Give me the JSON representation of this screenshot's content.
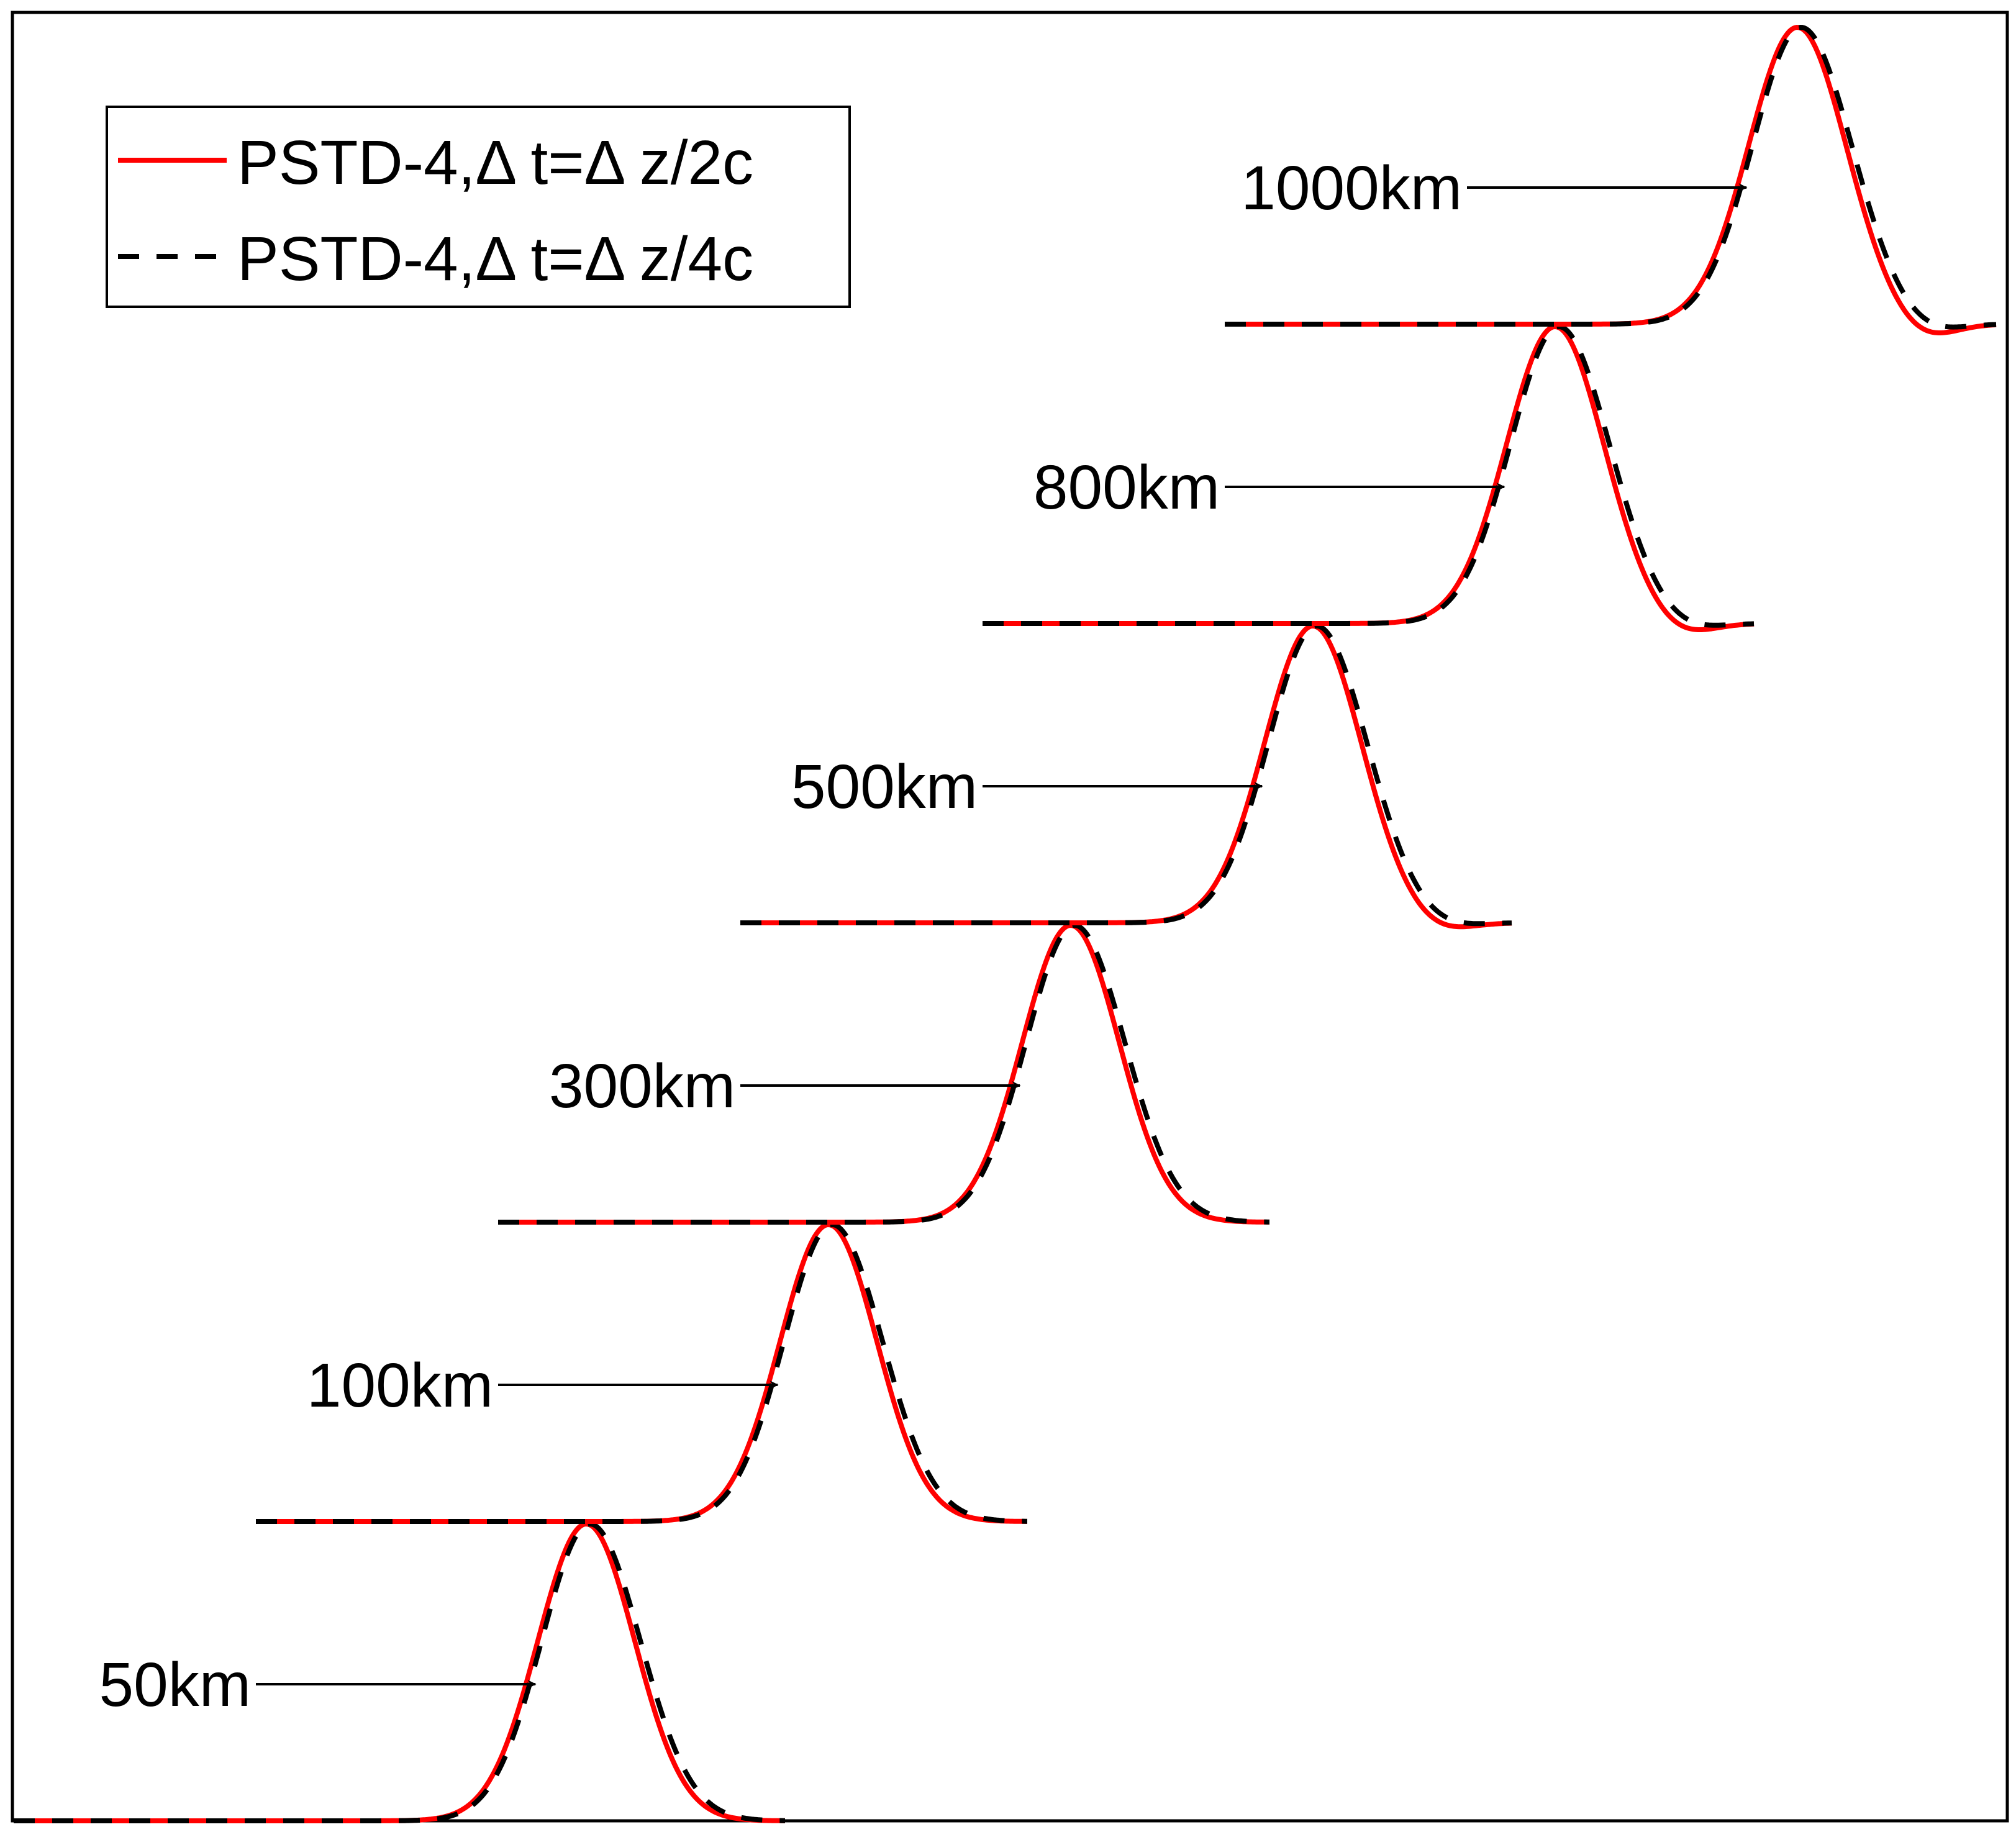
{
  "chart_data": {
    "type": "line",
    "title": "",
    "xlabel": "",
    "ylabel": "",
    "grid": false,
    "legend_position": "top-left",
    "colors": {
      "series_0": "#ff0000",
      "series_1": "#000000"
    },
    "series": [
      {
        "name": "PSTD-4,Δ t=Δ z/2c",
        "style": "solid"
      },
      {
        "name": "PSTD-4,Δ t=Δ z/4c",
        "style": "dashed"
      }
    ],
    "pulses": [
      {
        "label": "50km",
        "step": 0,
        "ringing": 0.0
      },
      {
        "label": "100km",
        "step": 1,
        "ringing": 0.0
      },
      {
        "label": "300km",
        "step": 2,
        "ringing": 0.0
      },
      {
        "label": "500km",
        "step": 3,
        "ringing": 0.03
      },
      {
        "label": "800km",
        "step": 4,
        "ringing": 0.04
      },
      {
        "label": "1000km",
        "step": 5,
        "ringing": 0.05
      }
    ]
  }
}
